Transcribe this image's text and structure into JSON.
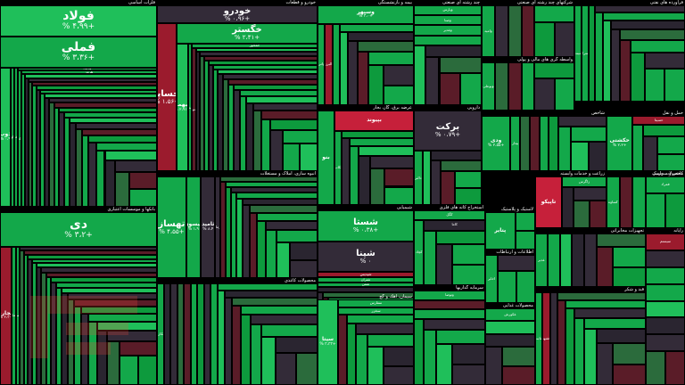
{
  "colors": {
    "strong_green": "#0d9a3d",
    "green": "#13a84a",
    "light_green": "#1fbf5a",
    "pale_green": "#2b6b3c",
    "dark_neutral": "#2a2530",
    "neutral": "#332b38",
    "dark_red": "#5a1c28",
    "red": "#9b1b2d",
    "bright_red": "#c6203a",
    "label_bg": "#000000"
  },
  "chart_data": {
    "type": "treemap",
    "metric": "percent change",
    "sectors": [
      {
        "name": "فلزات اساسی",
        "cells": [
          {
            "symbol": "فولاد",
            "change": "% ۴،۹۹+",
            "color": "light_green",
            "size": "xl"
          },
          {
            "symbol": "فملی",
            "change": "% ۳،۳۶+",
            "color": "green",
            "size": "xl"
          },
          {
            "symbol": "ذوب",
            "change": "% ۰،۹",
            "color": "light_green",
            "size": "md"
          },
          {
            "symbol": "کاوه",
            "change": "",
            "color": "green",
            "size": "sm"
          },
          {
            "symbol": "فخوز",
            "change": "",
            "color": "green",
            "size": "sm"
          },
          {
            "symbol": "فروی",
            "change": "",
            "color": "green",
            "size": "sm"
          },
          {
            "symbol": "فاذر",
            "change": "",
            "color": "green",
            "size": "sm"
          },
          {
            "symbol": "هرمز",
            "change": "",
            "color": "green",
            "size": "sm"
          }
        ]
      },
      {
        "name": "خودرو و قطعات",
        "cells": [
          {
            "symbol": "خودرو",
            "change": "% ۰،۹۶+",
            "color": "neutral",
            "size": "lg"
          },
          {
            "symbol": "خساپا",
            "change": "% ۱،۵۶+",
            "color": "red",
            "size": "lg"
          },
          {
            "symbol": "خگستر",
            "change": "% ۲،۴۱+",
            "color": "green",
            "size": "lg"
          },
          {
            "symbol": "خبهمن",
            "change": "% ۲،۹۱+",
            "color": "light_green",
            "size": "md"
          },
          {
            "symbol": "خریخت",
            "change": "",
            "color": "green",
            "size": "sm"
          },
          {
            "symbol": "خمحور",
            "change": "",
            "color": "green",
            "size": "sm"
          },
          {
            "symbol": "ختور",
            "change": "",
            "color": "dark_red",
            "size": "sm"
          }
        ]
      },
      {
        "name": "شیمیایی",
        "cells": [
          {
            "symbol": "شستا",
            "change": "% ۰،۳۸+",
            "color": "green",
            "size": "lg"
          },
          {
            "symbol": "شپنا",
            "change": "% ۰",
            "color": "neutral",
            "size": "lg"
          },
          {
            "symbol": "شپدیس",
            "change": "",
            "color": "red",
            "size": "sm"
          },
          {
            "symbol": "شتران",
            "change": "",
            "color": "green",
            "size": "sm"
          },
          {
            "symbol": "شفن",
            "change": "",
            "color": "green",
            "size": "sm"
          }
        ]
      },
      {
        "name": "بانکها و موسسات اعتباری",
        "cells": [
          {
            "symbol": "دی",
            "change": "% ۳،۲+",
            "color": "green",
            "size": "xl"
          },
          {
            "symbol": "وتجارت",
            "change": "% ۲،۳+",
            "color": "red",
            "size": "md"
          },
          {
            "symbol": "وبملت",
            "change": "",
            "color": "green",
            "size": "sm"
          },
          {
            "symbol": "وبصادر",
            "change": "",
            "color": "green",
            "size": "sm"
          }
        ]
      },
      {
        "name": "انبوه سازی، املاک و مستغلات",
        "cells": [
          {
            "symbol": "تهساز",
            "change": "% ۴،۵۵+",
            "color": "green",
            "size": "lg"
          },
          {
            "symbol": "کیسون",
            "change": "% ۱،۹",
            "color": "green",
            "size": "md"
          },
          {
            "symbol": "ثامید",
            "change": "% ۸،۴",
            "color": "neutral",
            "size": "md"
          },
          {
            "symbol": "کرمان",
            "change": "",
            "color": "neutral",
            "size": "sm"
          }
        ]
      },
      {
        "name": "سیمان، آهک و گچ",
        "cells": [
          {
            "symbol": "سیتا",
            "change": "% ۳،۳۳+",
            "color": "light_green",
            "size": "md"
          },
          {
            "symbol": "سفارس",
            "change": "",
            "color": "green",
            "size": "sm"
          },
          {
            "symbol": "سخزر",
            "change": "",
            "color": "green",
            "size": "sm"
          }
        ]
      },
      {
        "name": "استخراج کانه های فلزی",
        "cells": [
          {
            "symbol": "کگل",
            "change": "",
            "color": "green",
            "size": "sm"
          },
          {
            "symbol": "کچاد",
            "change": "",
            "color": "green",
            "size": "sm"
          },
          {
            "symbol": "کاما",
            "change": "",
            "color": "dark_neutral",
            "size": "sm"
          }
        ]
      },
      {
        "name": "فراورده های نفتی",
        "cells": [
          {
            "symbol": "شبندر",
            "change": "",
            "color": "green",
            "size": "sm"
          },
          {
            "symbol": "شتران",
            "change": "",
            "color": "green",
            "size": "sm"
          }
        ]
      },
      {
        "name": "رایانه",
        "cells": [
          {
            "symbol": "سیستم",
            "change": "",
            "color": "red",
            "size": "sm"
          }
        ]
      },
      {
        "name": "بیمه و بازنشستگی",
        "cells": [
          {
            "symbol": "وسپهر",
            "change": "% ۳،۰+",
            "color": "green",
            "size": "md"
          },
          {
            "symbol": "واتی",
            "change": "",
            "color": "green",
            "size": "sm"
          },
          {
            "symbol": "البرز",
            "change": "",
            "color": "red",
            "size": "sm"
          }
        ]
      },
      {
        "name": "چند رشته ای صنعتی",
        "cells": [
          {
            "symbol": "وپارس",
            "change": "",
            "color": "green",
            "size": "sm"
          },
          {
            "symbol": "وصنا",
            "change": "",
            "color": "green",
            "size": "sm"
          },
          {
            "symbol": "وغدیر",
            "change": "",
            "color": "green",
            "size": "sm"
          }
        ]
      },
      {
        "name": "دارویی",
        "cells": [
          {
            "symbol": "برکت",
            "change": "% ۰،۷۹+",
            "color": "neutral",
            "size": "lg"
          },
          {
            "symbol": "دالبر",
            "change": "",
            "color": "green",
            "size": "sm"
          }
        ]
      },
      {
        "name": "زراعت و خدمات وابسته",
        "cells": [
          {
            "symbol": "تاپیکو",
            "change": "",
            "color": "bright_red",
            "size": "md"
          },
          {
            "symbol": "زاگرس",
            "change": "",
            "color": "green",
            "size": "sm"
          }
        ]
      },
      {
        "name": "شرکتهای چند رشته ای صنعتی",
        "cells": [
          {
            "symbol": "وامید",
            "change": "",
            "color": "green",
            "size": "sm"
          }
        ]
      },
      {
        "name": "واسطه گری های مالی و پولی",
        "cells": [
          {
            "symbol": "وبوعلی",
            "change": "",
            "color": "green",
            "size": "sm"
          }
        ]
      },
      {
        "name": "سرمایه گذاریها",
        "cells": [
          {
            "symbol": "وتوصا",
            "change": "",
            "color": "green",
            "size": "sm"
          }
        ]
      },
      {
        "name": "حمل و نقل",
        "cells": [
          {
            "symbol": "حکشتی",
            "change": "% ۲،۲+",
            "color": "green",
            "size": "md"
          },
          {
            "symbol": "حسینا",
            "change": "",
            "color": "red",
            "size": "sm"
          }
        ]
      },
      {
        "name": "عرضه برق، گاز، بخار",
        "cells": [
          {
            "symbol": "بنو",
            "change": "",
            "color": "green",
            "size": "md"
          },
          {
            "symbol": "بپیوند",
            "change": "",
            "color": "bright_red",
            "size": "md"
          },
          {
            "symbol": "بکاب",
            "change": "",
            "color": "green",
            "size": "sm"
          }
        ]
      },
      {
        "name": "اطلاعات و ارتباطات",
        "cells": [
          {
            "symbol": "اخابر",
            "change": "",
            "color": "green",
            "size": "sm"
          }
        ]
      },
      {
        "name": "لاستیک و پلاستیک",
        "cells": [
          {
            "symbol": "پتایر",
            "change": "",
            "color": "green",
            "size": "md"
          }
        ]
      },
      {
        "name": "تجهیزات مخابراتی",
        "cells": [
          {
            "symbol": "غدیر",
            "change": "",
            "color": "green",
            "size": "sm"
          }
        ]
      },
      {
        "name": "محصولات غذایی",
        "cells": [
          {
            "symbol": "غکورش",
            "change": "",
            "color": "green",
            "size": "sm"
          }
        ]
      },
      {
        "name": "محصولات کاغذی",
        "cells": [
          {
            "symbol": "چکارن",
            "change": "",
            "color": "green",
            "size": "sm"
          }
        ]
      },
      {
        "name": "قند و شکر",
        "cells": [
          {
            "symbol": "قثابت",
            "change": "",
            "color": "green",
            "size": "sm"
          },
          {
            "symbol": "قشهد",
            "change": "",
            "color": "red",
            "size": "sm"
          }
        ]
      },
      {
        "name": "شاخص",
        "cells": [
          {
            "symbol": "ودی",
            "change": "% ۲،۵۵+",
            "color": "green",
            "size": "md"
          },
          {
            "symbol": "بیدار",
            "change": "",
            "color": "green",
            "size": "sm"
          }
        ]
      },
      {
        "name": "کاشی و سرامیک",
        "cells": [
          {
            "symbol": "کساوه",
            "change": "",
            "color": "green",
            "size": "sm"
          }
        ]
      },
      {
        "name": "محصولات چرمی",
        "cells": [
          {
            "symbol": "فمراد",
            "change": "",
            "color": "green",
            "size": "sm"
          }
        ]
      }
    ]
  }
}
